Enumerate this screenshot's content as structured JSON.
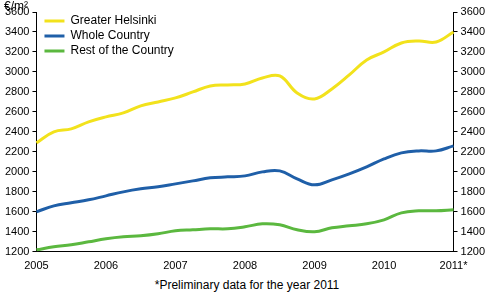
{
  "chart_data": {
    "type": "line",
    "ylabel": "€/m²",
    "footnote": "*Preliminary data for the year 2011",
    "categories": [
      "2005",
      null,
      null,
      null,
      "2006",
      null,
      null,
      null,
      "2007",
      null,
      null,
      null,
      "2008",
      null,
      null,
      null,
      "2009",
      null,
      null,
      null,
      "2010",
      null,
      null,
      null,
      "2011*"
    ],
    "series": [
      {
        "name": "Greater Helsinki",
        "color": "#f2e21c",
        "values": [
          2290,
          2400,
          2430,
          2500,
          2550,
          2590,
          2660,
          2700,
          2740,
          2800,
          2860,
          2870,
          2880,
          2940,
          2960,
          2790,
          2730,
          2830,
          2970,
          3120,
          3200,
          3290,
          3310,
          3300,
          3400
        ]
      },
      {
        "name": "Whole Country",
        "color": "#1f5fa8",
        "values": [
          1600,
          1660,
          1690,
          1720,
          1760,
          1800,
          1830,
          1850,
          1880,
          1910,
          1940,
          1950,
          1960,
          2000,
          2010,
          1930,
          1870,
          1920,
          1980,
          2050,
          2130,
          2190,
          2210,
          2210,
          2260
        ]
      },
      {
        "name": "Rest of the Country",
        "color": "#5bb83f",
        "values": [
          1220,
          1250,
          1270,
          1300,
          1330,
          1350,
          1360,
          1380,
          1410,
          1420,
          1430,
          1430,
          1450,
          1480,
          1470,
          1420,
          1400,
          1440,
          1460,
          1480,
          1520,
          1590,
          1610,
          1610,
          1620
        ]
      }
    ],
    "ylim": [
      1200,
      3600
    ],
    "yticks": [
      1200,
      1400,
      1600,
      1800,
      2000,
      2200,
      2400,
      2600,
      2800,
      3000,
      3200,
      3400,
      3600
    ],
    "y2lim": [
      1200,
      3600
    ],
    "y2ticks": [
      1200,
      1400,
      1600,
      1800,
      2000,
      2200,
      2400,
      2600,
      2800,
      3000,
      3200,
      3400,
      3600
    ],
    "grid": false,
    "legend": "upper left"
  }
}
